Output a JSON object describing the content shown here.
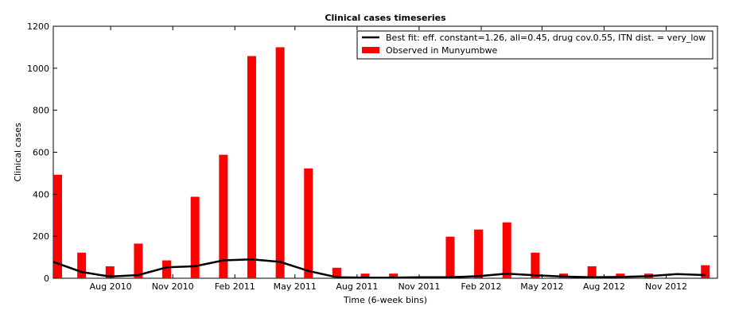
{
  "chart_data": {
    "type": "bar",
    "title": "Clinical cases timeseries",
    "xlabel": "Time (6-week bins)",
    "ylabel": "Clinical cases",
    "ylim": [
      0,
      1200
    ],
    "yticks": [
      0,
      200,
      400,
      600,
      800,
      1000,
      1200
    ],
    "xlim": [
      "2010-05-08",
      "2013-01-16"
    ],
    "xticks": [
      {
        "label": "Aug 2010",
        "date": "2010-08-01"
      },
      {
        "label": "Nov 2010",
        "date": "2010-11-01"
      },
      {
        "label": "Feb 2011",
        "date": "2011-02-01"
      },
      {
        "label": "May 2011",
        "date": "2011-05-01"
      },
      {
        "label": "Aug 2011",
        "date": "2011-08-01"
      },
      {
        "label": "Nov 2011",
        "date": "2011-11-01"
      },
      {
        "label": "Feb 2012",
        "date": "2012-02-01"
      },
      {
        "label": "May 2012",
        "date": "2012-05-01"
      },
      {
        "label": "Aug 2012",
        "date": "2012-08-01"
      },
      {
        "label": "Nov 2012",
        "date": "2012-11-01"
      }
    ],
    "grid": false,
    "legend_position": "top-right",
    "x": [
      "2010-05-08",
      "2010-06-19",
      "2010-07-31",
      "2010-09-11",
      "2010-10-23",
      "2010-12-04",
      "2011-01-15",
      "2011-02-26",
      "2011-04-09",
      "2011-05-21",
      "2011-07-02",
      "2011-08-13",
      "2011-09-24",
      "2011-11-05",
      "2011-12-17",
      "2012-01-28",
      "2012-03-10",
      "2012-04-21",
      "2012-06-02",
      "2012-07-14",
      "2012-08-25",
      "2012-10-06",
      "2012-11-17",
      "2012-12-29"
    ],
    "series": [
      {
        "name": "Observed in Munyumbwe",
        "kind": "bar",
        "color": "#ff0000",
        "values": [
          493,
          122,
          57,
          165,
          85,
          388,
          588,
          1058,
          1100,
          523,
          50,
          22,
          22,
          4,
          198,
          232,
          266,
          122,
          22,
          57,
          22,
          22,
          3,
          62
        ]
      },
      {
        "name": "Best fit: eff. constant=1.26, all=0.45, drug cov.0.55, ITN dist. = very_low",
        "kind": "line",
        "color": "#000000",
        "values": [
          78,
          30,
          8,
          15,
          52,
          57,
          85,
          90,
          78,
          35,
          5,
          3,
          3,
          5,
          5,
          10,
          22,
          14,
          8,
          5,
          6,
          10,
          20,
          15
        ]
      }
    ]
  }
}
